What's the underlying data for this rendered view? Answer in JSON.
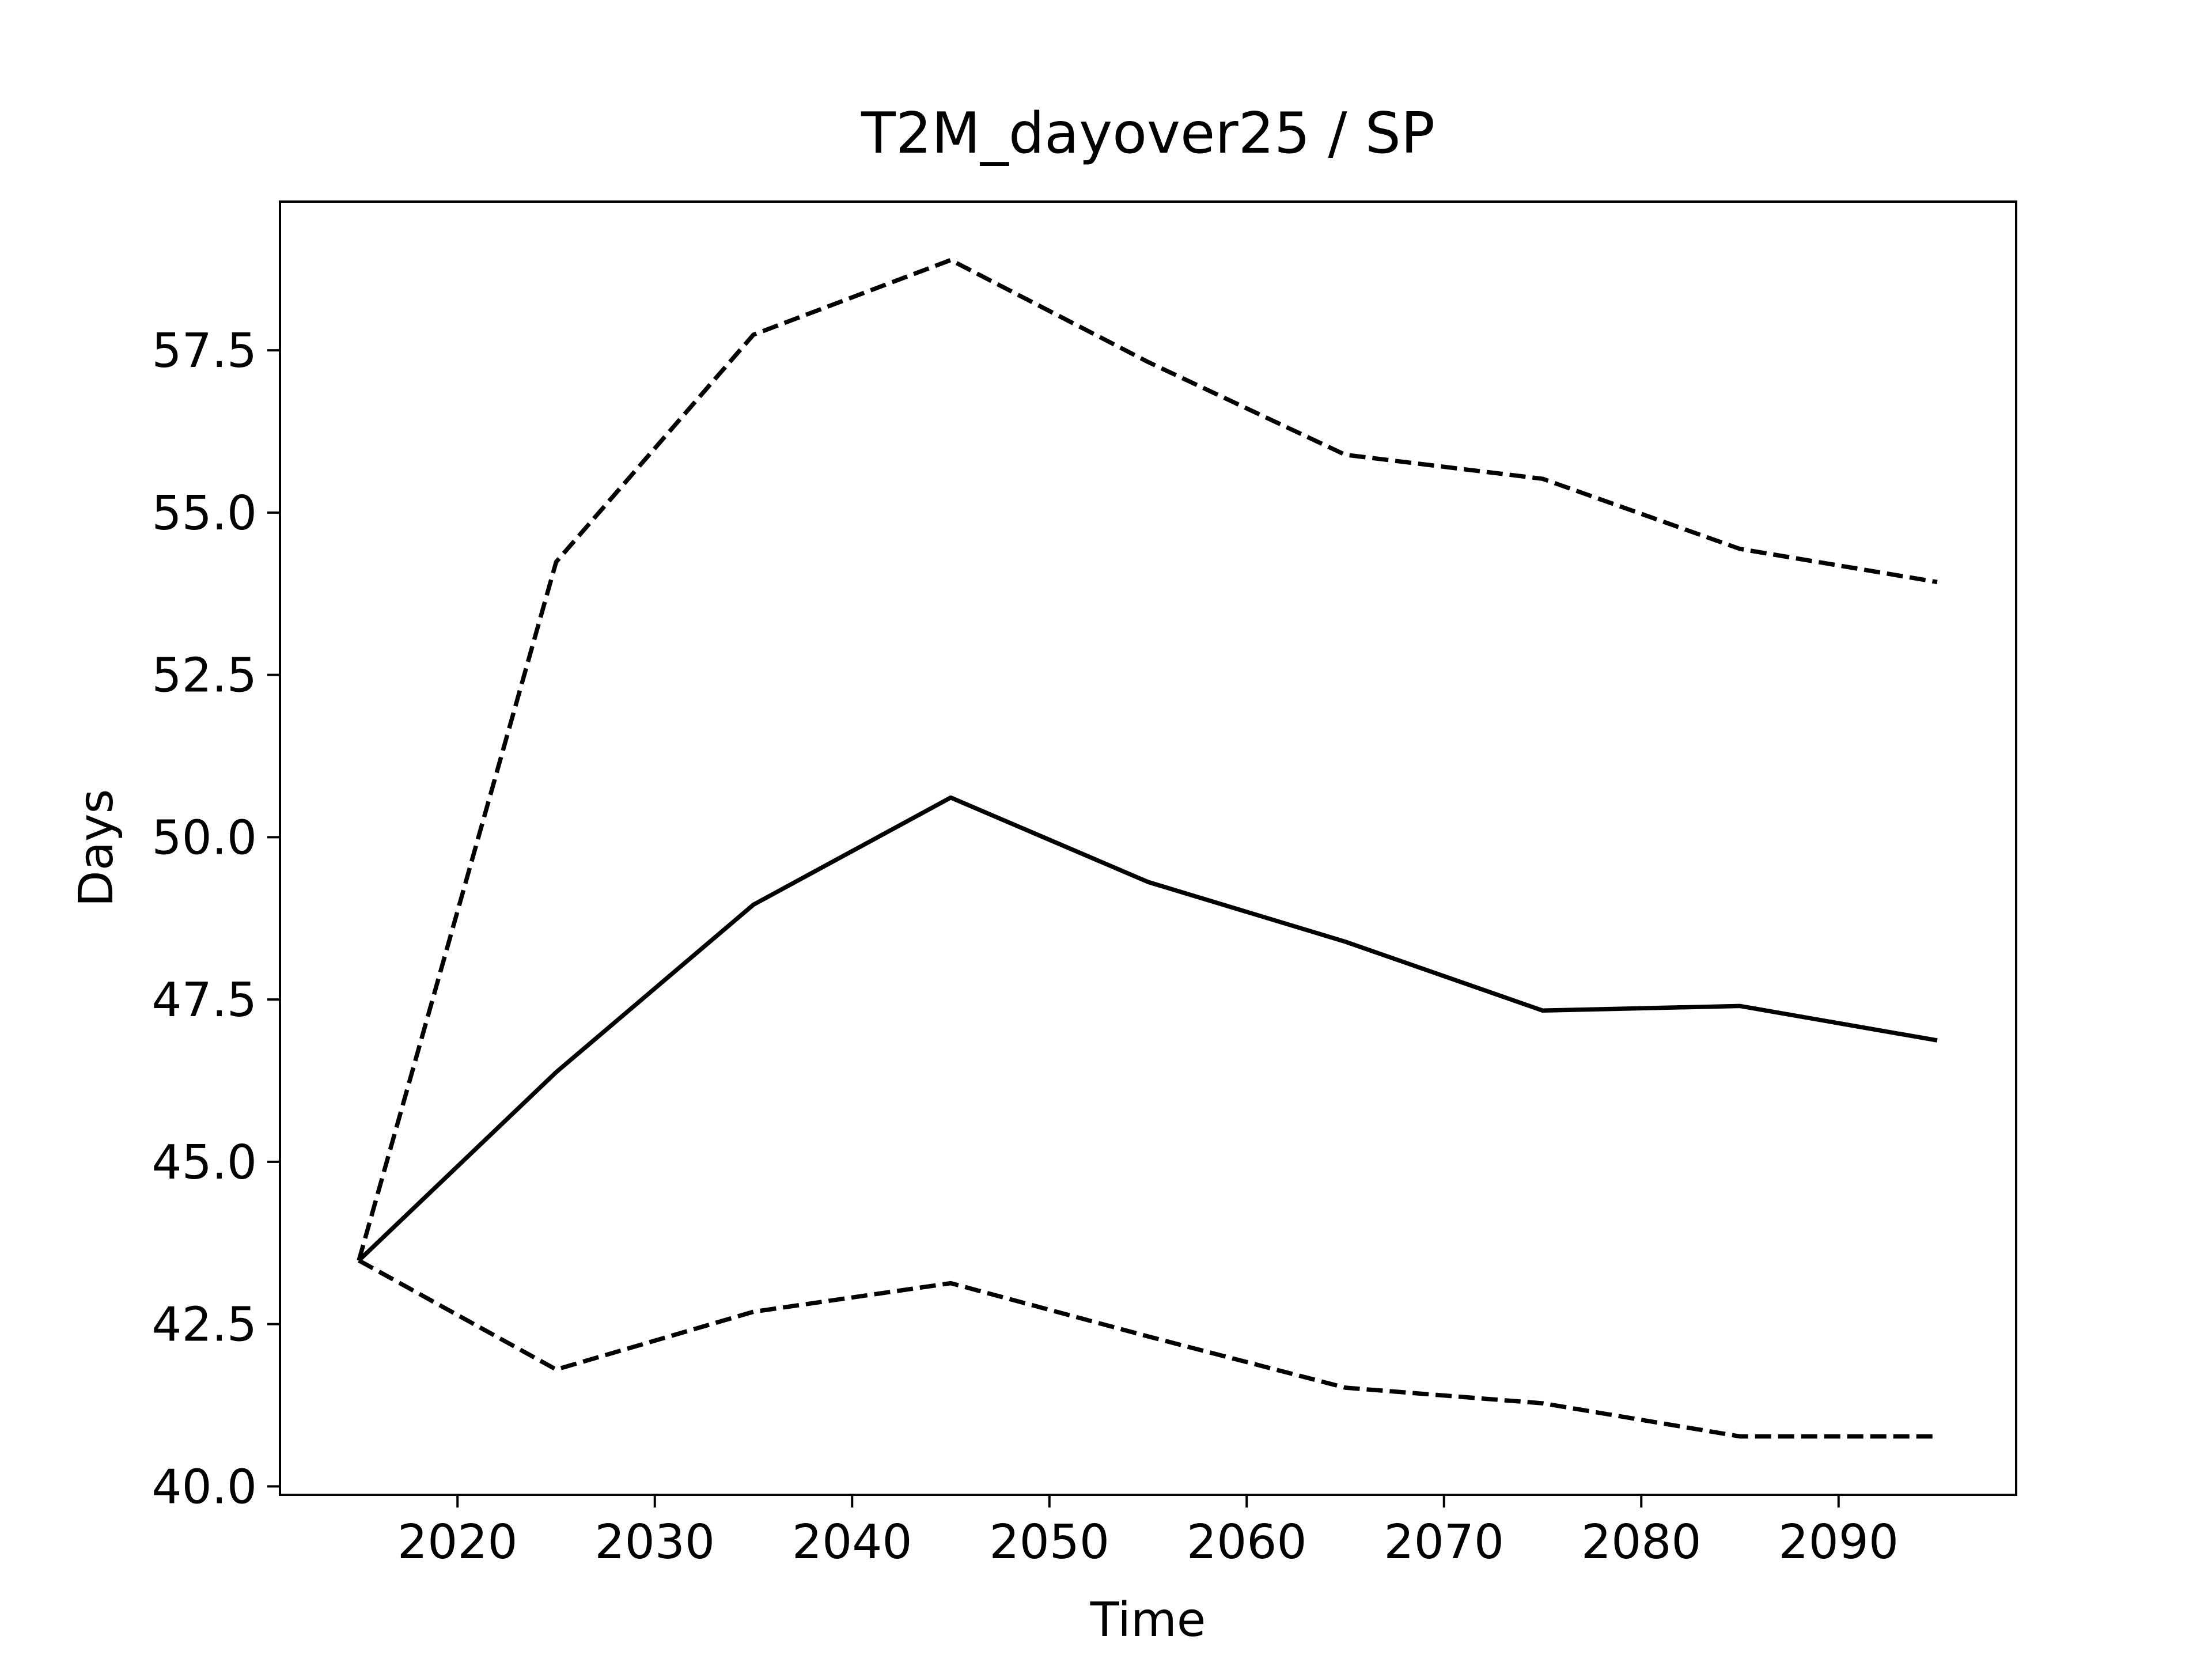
{
  "chart_data": {
    "type": "line",
    "title": "T2M_dayover25 / SP",
    "xlabel": "Time",
    "ylabel": "Days",
    "x": [
      2015,
      2025,
      2035,
      2045,
      2055,
      2065,
      2075,
      2085,
      2095
    ],
    "series": [
      {
        "color": "#000000",
        "linestyle": "solid",
        "values": [
          43.48,
          46.38,
          48.96,
          50.61,
          49.31,
          48.39,
          47.33,
          47.4,
          46.87
        ]
      },
      {
        "color": "#000000",
        "linestyle": "dashed",
        "values": [
          43.48,
          54.24,
          57.74,
          58.89,
          57.32,
          55.89,
          55.52,
          54.44,
          53.93
        ]
      },
      {
        "color": "#000000",
        "linestyle": "dashed",
        "values": [
          43.48,
          41.8,
          42.69,
          43.13,
          42.31,
          41.52,
          41.28,
          40.77,
          40.77
        ]
      }
    ],
    "xlim": [
      2011,
      2099
    ],
    "xticks": [
      2020,
      2030,
      2040,
      2050,
      2060,
      2070,
      2080,
      2090
    ],
    "ylim": [
      39.87,
      59.79
    ],
    "yticks": [
      {
        "value": 40,
        "label": "40.0"
      },
      42.5,
      {
        "value": 45,
        "label": "45.0"
      },
      47.5,
      {
        "value": 50,
        "label": "50.0"
      },
      52.5,
      {
        "value": 55,
        "label": "55.0"
      },
      57.5
    ],
    "grid": false
  }
}
